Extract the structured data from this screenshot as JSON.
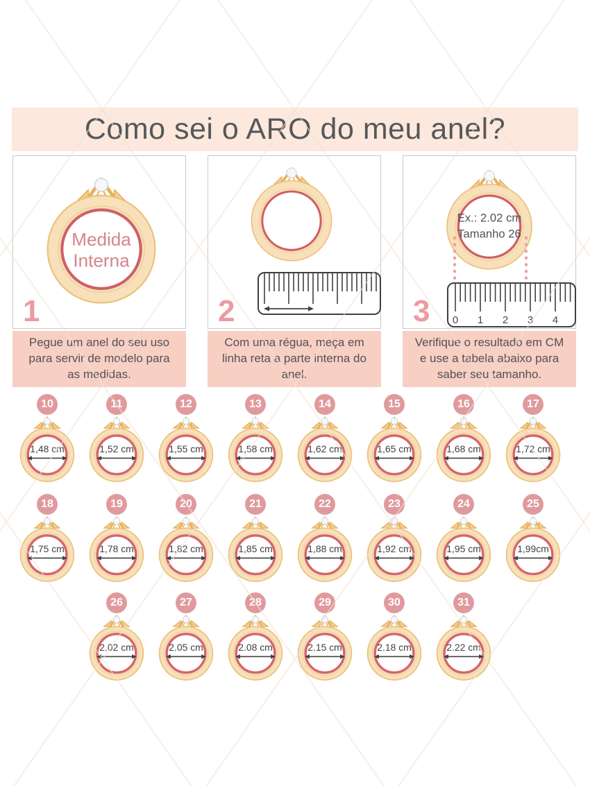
{
  "title": "Como sei o ARO do meu anel?",
  "steps": [
    {
      "number": "1",
      "ring_label": {
        "line1": "Medida",
        "line2": "Interna"
      },
      "caption": "Pegue um anel do seu uso para servir de modelo para as medidas."
    },
    {
      "number": "2",
      "caption": "Com uma régua, meça em linha reta a parte interna do anel."
    },
    {
      "number": "3",
      "example": {
        "line1": "Ex.: 2.02 cm",
        "line2": "Tamanho 26"
      },
      "ruler_numbers": [
        "0",
        "1",
        "2",
        "3",
        "4"
      ],
      "caption": "Verifique o resultado em CM e use a tabela abaixo para saber seu tamanho."
    }
  ],
  "size_table": {
    "rows": [
      [
        {
          "size": "10",
          "measure": "1,48 cm"
        },
        {
          "size": "11",
          "measure": "1,52 cm"
        },
        {
          "size": "12",
          "measure": "1,55 cm"
        },
        {
          "size": "13",
          "measure": "1,58 cm"
        },
        {
          "size": "14",
          "measure": "1,62 cm"
        },
        {
          "size": "15",
          "measure": "1,65 cm"
        },
        {
          "size": "16",
          "measure": "1,68 cm"
        },
        {
          "size": "17",
          "measure": "1,72 cm"
        }
      ],
      [
        {
          "size": "18",
          "measure": "1,75 cm"
        },
        {
          "size": "19",
          "measure": "1,78 cm"
        },
        {
          "size": "20",
          "measure": "1,82 cm"
        },
        {
          "size": "21",
          "measure": "1,85 cm"
        },
        {
          "size": "22",
          "measure": "1,88 cm"
        },
        {
          "size": "23",
          "measure": "1,92 cm"
        },
        {
          "size": "24",
          "measure": "1,95 cm"
        },
        {
          "size": "25",
          "measure": "1,99cm"
        }
      ],
      [
        {
          "size": "26",
          "measure": "2.02 cm"
        },
        {
          "size": "27",
          "measure": "2.05 cm"
        },
        {
          "size": "28",
          "measure": "2.08 cm"
        },
        {
          "size": "29",
          "measure": "2.15 cm"
        },
        {
          "size": "30",
          "measure": "2.18 cm"
        },
        {
          "size": "31",
          "measure": "2.22 cm"
        }
      ]
    ]
  },
  "colors": {
    "banner_bg": "#fce8dc",
    "caption_bg": "#f8cfc3",
    "badge_pink": "#e09a9e",
    "ring_gold": "#f7e0ba",
    "ring_gold_edge": "#ecc17b",
    "inner_ring_pink": "#d5666b",
    "accent_pink_text": "#eb9ba0",
    "title_text": "#56575a",
    "dotted_line_pink": "#e8a2a6"
  }
}
